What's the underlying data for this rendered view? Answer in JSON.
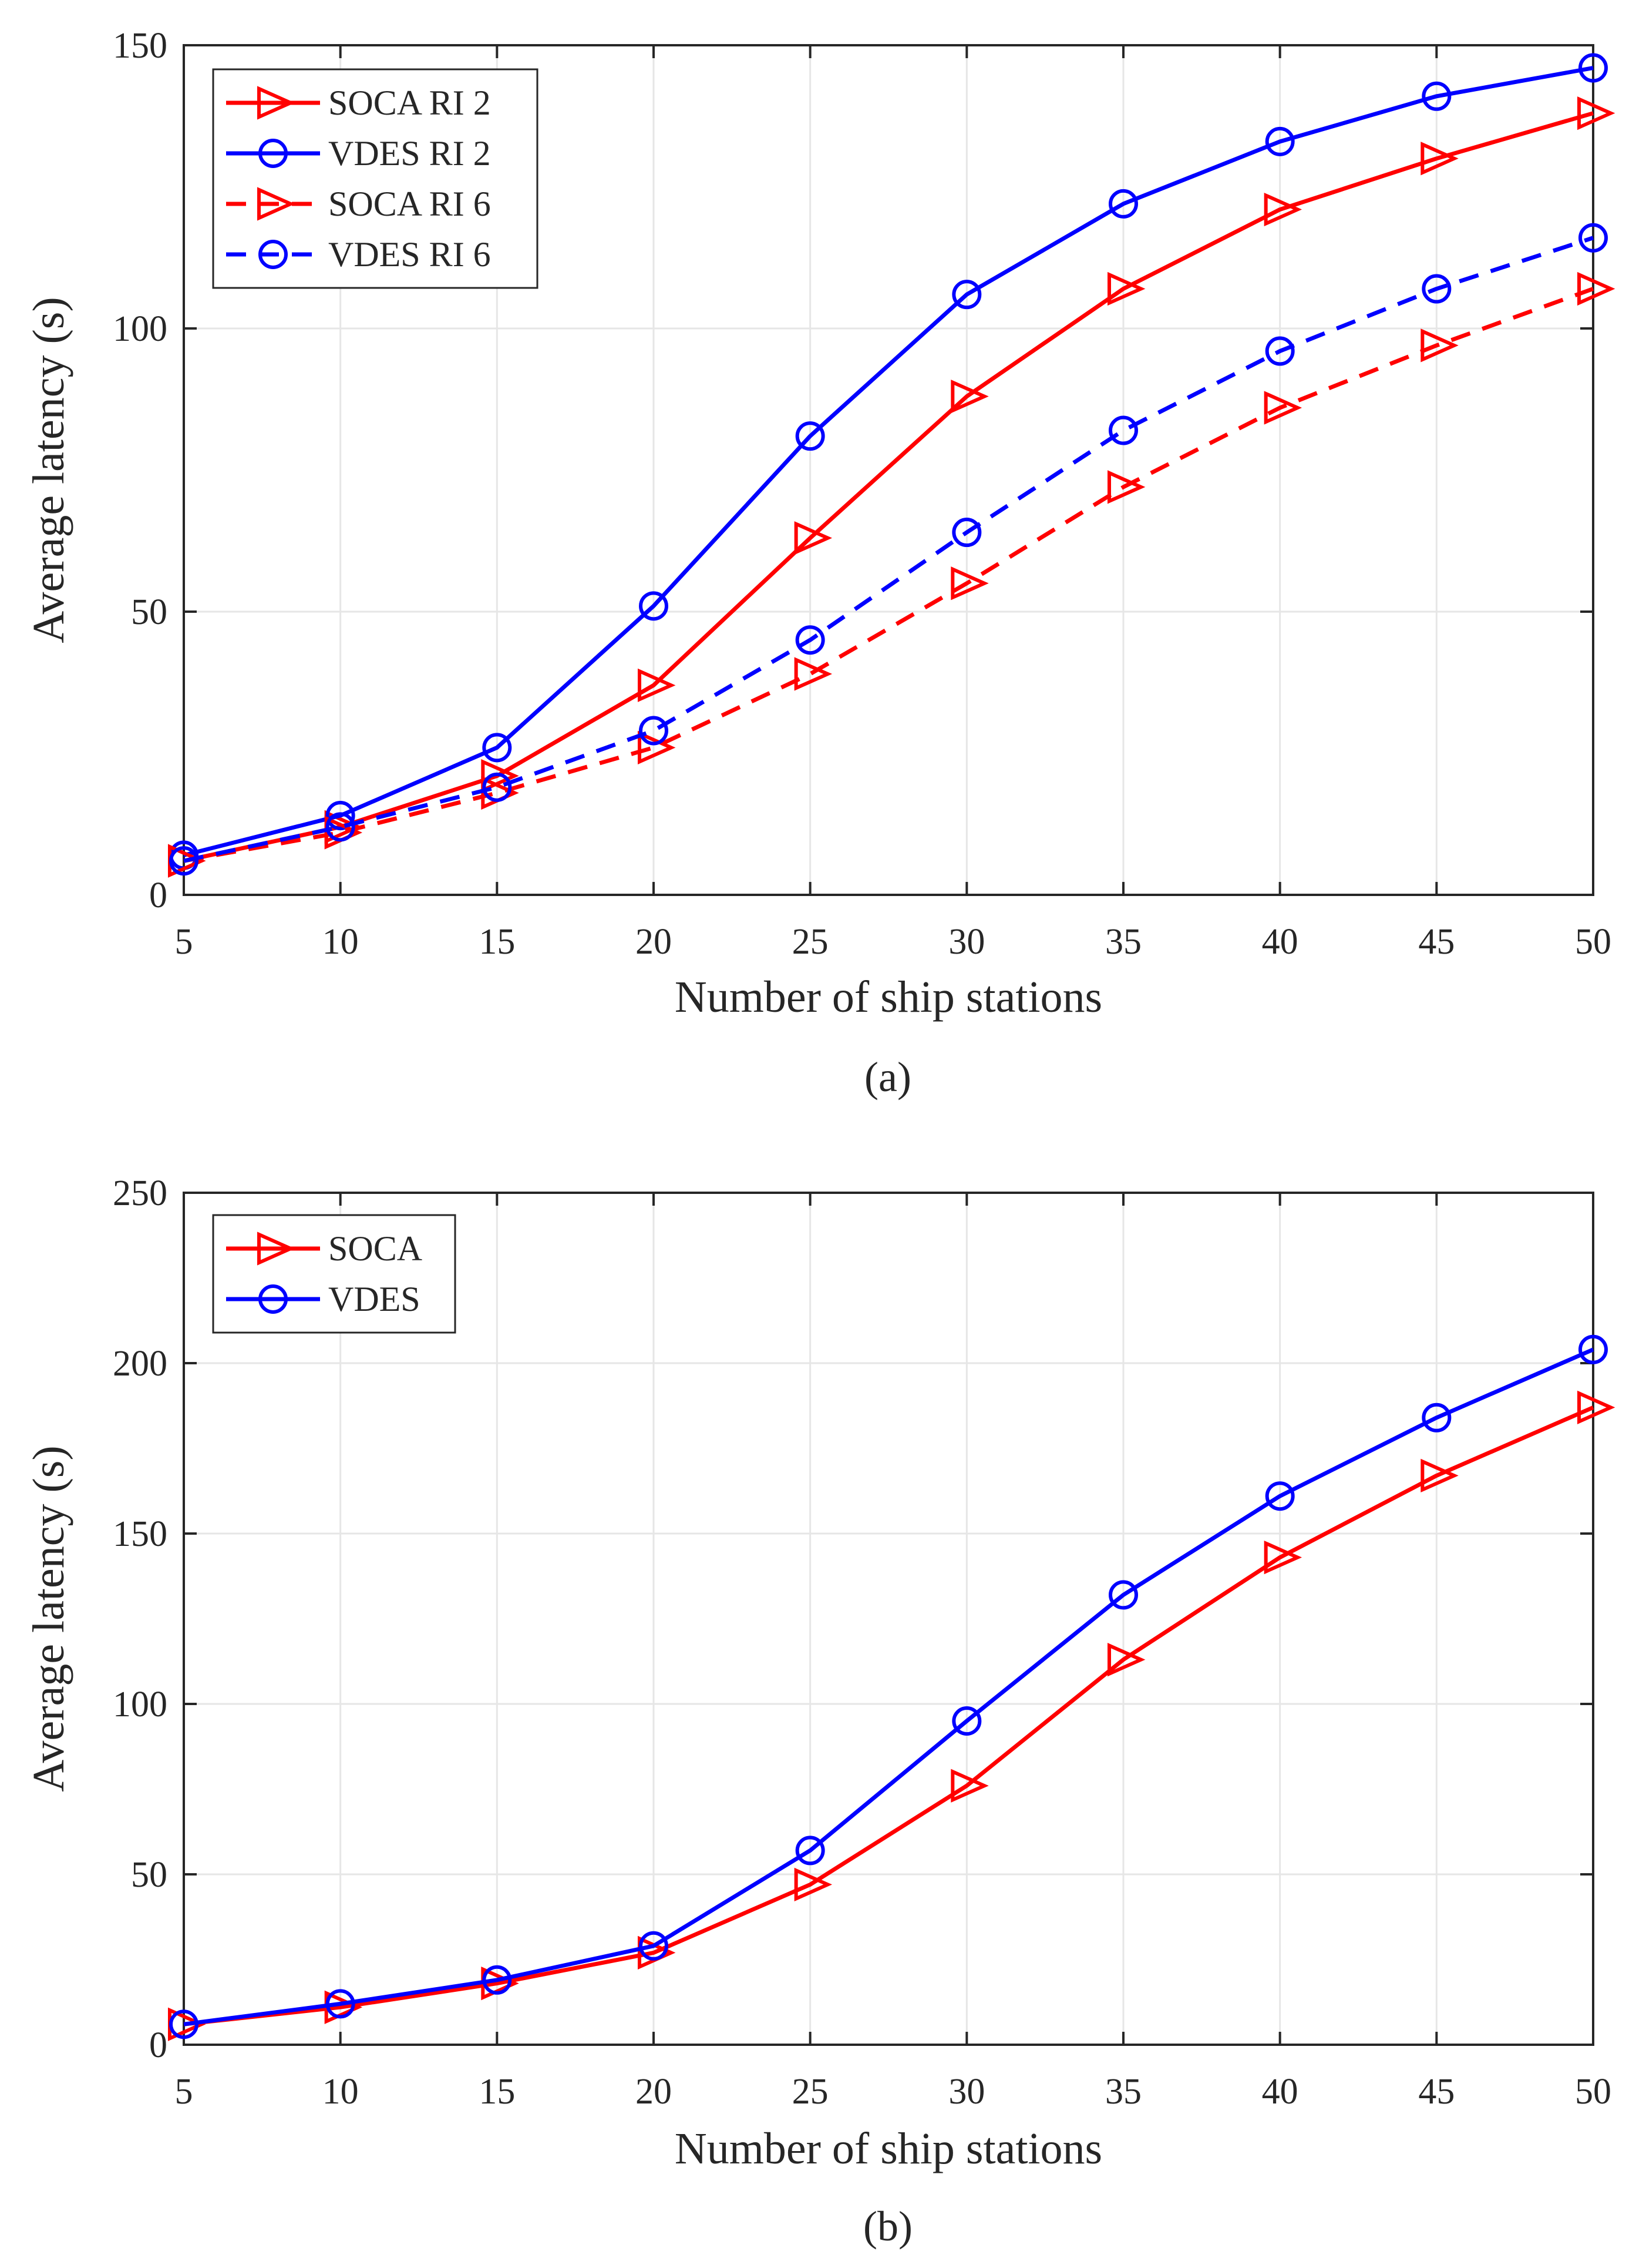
{
  "figure": {
    "panel_labels": [
      "(a)",
      "(b)"
    ]
  },
  "colors": {
    "red": "#ff0000",
    "blue": "#0000ff",
    "grid": "#e6e6e6",
    "axis": "#262626"
  },
  "chart_data": [
    {
      "type": "line",
      "panel": "(a)",
      "xlabel": "Number of ship stations",
      "ylabel": "Average latency (s)",
      "xlim": [
        5,
        50
      ],
      "ylim": [
        0,
        150
      ],
      "xticks": [
        5,
        10,
        15,
        20,
        25,
        30,
        35,
        40,
        45,
        50
      ],
      "yticks": [
        0,
        50,
        100,
        150
      ],
      "grid": true,
      "legend_position": "top-left",
      "x": [
        5,
        10,
        15,
        20,
        25,
        30,
        35,
        40,
        45,
        50
      ],
      "series": [
        {
          "name": "SOCA RI 2",
          "color": "#ff0000",
          "marker": "triangle-right",
          "linestyle": "solid",
          "values": [
            6,
            12,
            21,
            37,
            63,
            88,
            107,
            121,
            130,
            138
          ]
        },
        {
          "name": "VDES RI 2",
          "color": "#0000ff",
          "marker": "circle",
          "linestyle": "solid",
          "values": [
            7,
            14,
            26,
            51,
            81,
            106,
            122,
            133,
            141,
            146
          ]
        },
        {
          "name": "SOCA RI 6",
          "color": "#ff0000",
          "marker": "triangle-right",
          "linestyle": "dashed",
          "values": [
            6,
            11,
            18,
            26,
            39,
            55,
            72,
            86,
            97,
            107
          ]
        },
        {
          "name": "VDES RI 6",
          "color": "#0000ff",
          "marker": "circle",
          "linestyle": "dashed",
          "values": [
            6,
            12,
            19,
            29,
            45,
            64,
            82,
            96,
            107,
            116
          ]
        }
      ]
    },
    {
      "type": "line",
      "panel": "(b)",
      "xlabel": "Number of ship stations",
      "ylabel": "Average latency (s)",
      "xlim": [
        5,
        50
      ],
      "ylim": [
        0,
        250
      ],
      "xticks": [
        5,
        10,
        15,
        20,
        25,
        30,
        35,
        40,
        45,
        50
      ],
      "yticks": [
        0,
        50,
        100,
        150,
        200,
        250
      ],
      "grid": true,
      "legend_position": "top-left",
      "x": [
        5,
        10,
        15,
        20,
        25,
        30,
        35,
        40,
        45,
        50
      ],
      "series": [
        {
          "name": "SOCA",
          "color": "#ff0000",
          "marker": "triangle-right",
          "linestyle": "solid",
          "values": [
            6,
            11,
            18,
            27,
            47,
            76,
            113,
            143,
            167,
            187
          ]
        },
        {
          "name": "VDES",
          "color": "#0000ff",
          "marker": "circle",
          "linestyle": "solid",
          "values": [
            6,
            12,
            19,
            29,
            57,
            95,
            132,
            161,
            184,
            204
          ]
        }
      ]
    }
  ]
}
